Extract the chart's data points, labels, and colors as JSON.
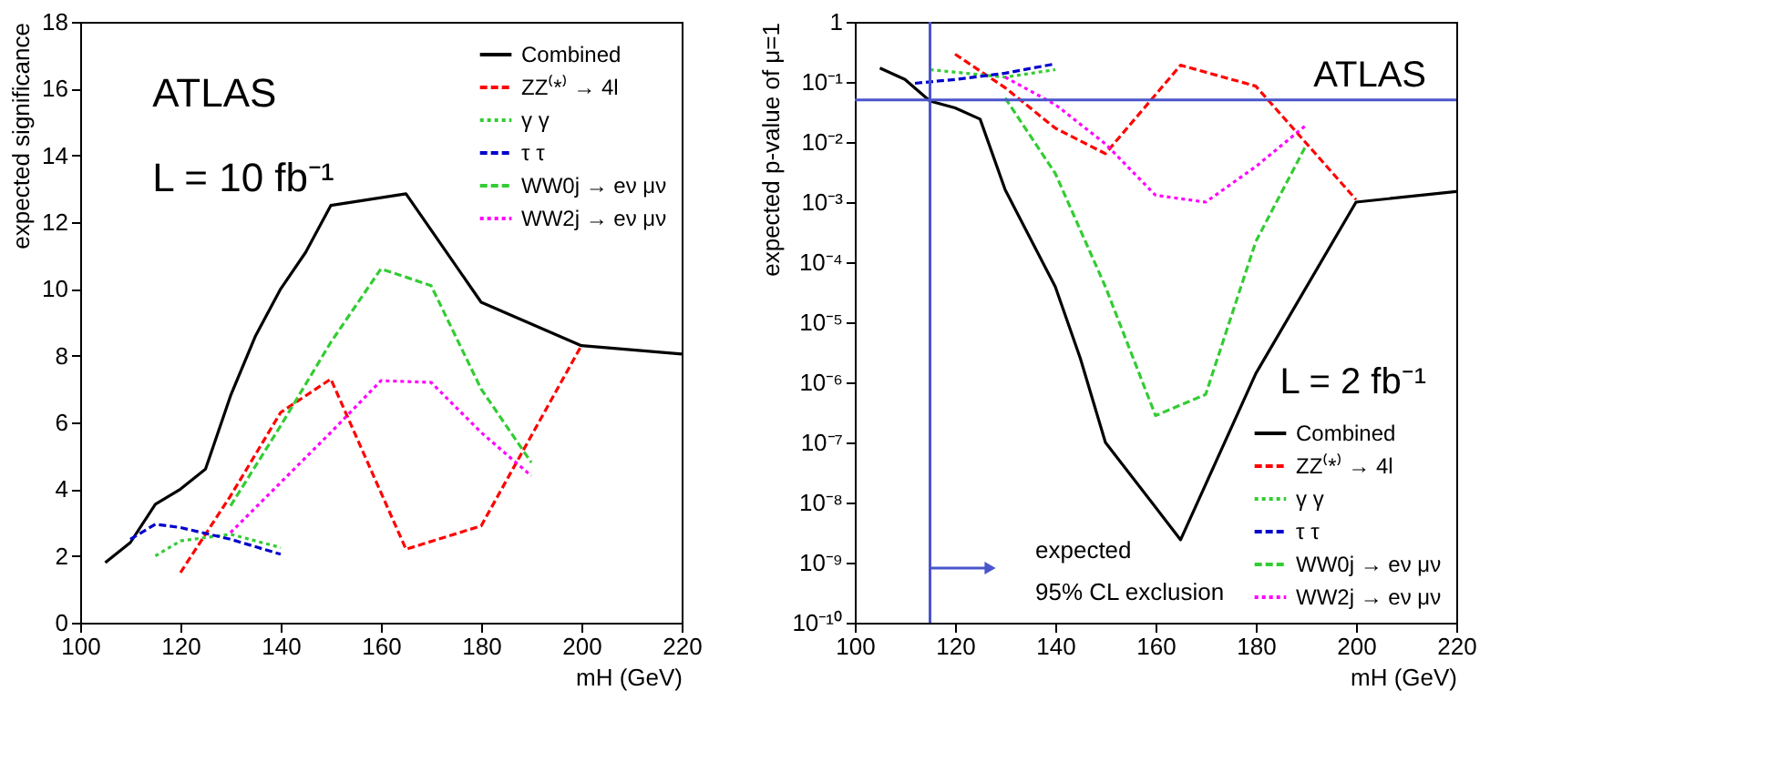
{
  "chart_data": [
    {
      "type": "line",
      "xlabel": "mH (GeV)",
      "ylabel": "expected significance",
      "xlim": [
        100,
        220
      ],
      "xticks": [
        100,
        120,
        140,
        160,
        180,
        200,
        220
      ],
      "ylim": [
        0,
        18
      ],
      "yticks": [
        0,
        2,
        4,
        6,
        8,
        10,
        12,
        14,
        16,
        18
      ],
      "grid": false,
      "legend": "top right",
      "annotations": [
        "ATLAS",
        "L = 10 fb⁻¹"
      ],
      "series": [
        {
          "name": "Combined",
          "color": "#000000",
          "line_style": "solid",
          "x": [
            105,
            110,
            115,
            120,
            125,
            130,
            135,
            140,
            145,
            150,
            165,
            180,
            200,
            220
          ],
          "values": [
            1.8,
            2.4,
            3.55,
            4.0,
            4.6,
            6.8,
            8.6,
            10.0,
            11.1,
            12.5,
            12.85,
            9.6,
            8.3,
            8.05
          ]
        },
        {
          "name": "ZZ⁽*⁾ → 4l",
          "color": "#ff0000",
          "line_style": "dashed",
          "x": [
            120,
            130,
            140,
            150,
            165,
            180,
            200
          ],
          "values": [
            1.5,
            3.8,
            6.3,
            7.3,
            2.2,
            2.9,
            8.3
          ]
        },
        {
          "name": "γ γ",
          "color": "#33cc33",
          "line_style": "dotted",
          "x": [
            115,
            120,
            130,
            140
          ],
          "values": [
            2.0,
            2.45,
            2.65,
            2.25
          ]
        },
        {
          "name": "τ τ",
          "color": "#0000cc",
          "line_style": "dashed",
          "x": [
            110,
            115,
            120,
            130,
            140
          ],
          "values": [
            2.5,
            2.95,
            2.85,
            2.5,
            2.05
          ]
        },
        {
          "name": "WW0j → eν μν",
          "color": "#33cc33",
          "line_style": "dashed",
          "x": [
            130,
            140,
            150,
            160,
            170,
            180,
            190
          ],
          "values": [
            3.5,
            5.9,
            8.4,
            10.6,
            10.1,
            7.0,
            4.8
          ]
        },
        {
          "name": "WW2j → eν μν",
          "color": "#ff00ff",
          "line_style": "dotted",
          "x": [
            130,
            140,
            150,
            160,
            170,
            180,
            190
          ],
          "values": [
            2.7,
            4.2,
            5.7,
            7.25,
            7.2,
            5.7,
            4.4
          ]
        }
      ]
    },
    {
      "type": "line",
      "xlabel": "mH (GeV)",
      "ylabel": "expected p-value of μ=1",
      "log": "y",
      "xlim": [
        100,
        220
      ],
      "xticks": [
        100,
        120,
        140,
        160,
        180,
        200,
        220
      ],
      "ylim": [
        1e-10,
        1
      ],
      "grid": false,
      "legend": "bottom right",
      "yticks": [
        {
          "value": 1e-10,
          "label": "10⁻¹⁰"
        },
        {
          "value": 1e-09,
          "label": "10⁻⁹"
        },
        {
          "value": 1e-08,
          "label": "10⁻⁸"
        },
        {
          "value": 1e-07,
          "label": "10⁻⁷"
        },
        {
          "value": 1e-06,
          "label": "10⁻⁶"
        },
        {
          "value": 1e-05,
          "label": "10⁻⁵"
        },
        {
          "value": 0.0001,
          "label": "10⁻⁴"
        },
        {
          "value": 0.001,
          "label": "10⁻³"
        },
        {
          "value": 0.01,
          "label": "10⁻²"
        },
        {
          "value": 0.1,
          "label": "10⁻¹"
        },
        1
      ],
      "annotations": [
        "ATLAS",
        "L = 2 fb⁻¹",
        "expected",
        "95% CL exclusion"
      ],
      "ref_lines": [
        {
          "axis": "y",
          "value": 0.05,
          "color": "#4a55cc"
        },
        {
          "axis": "x",
          "value": 115,
          "color": "#4a55cc"
        }
      ],
      "series": [
        {
          "name": "Combined",
          "color": "#000000",
          "line_style": "solid",
          "x": [
            105,
            110,
            115,
            120,
            125,
            130,
            140,
            145,
            150,
            165,
            180,
            200,
            220
          ],
          "values": [
            0.17,
            0.11,
            0.048,
            0.037,
            0.024,
            0.0016,
            3.9e-05,
            2.5e-06,
            1e-07,
            2.4e-09,
            1.4e-06,
            0.001,
            0.0015
          ]
        },
        {
          "name": "ZZ⁽*⁾ → 4l",
          "color": "#ff0000",
          "line_style": "dashed",
          "x": [
            120,
            130,
            140,
            150,
            165,
            180,
            200
          ],
          "values": [
            0.29,
            0.08,
            0.017,
            0.0064,
            0.19,
            0.085,
            0.0011
          ]
        },
        {
          "name": "γ γ",
          "color": "#33cc33",
          "line_style": "dotted",
          "x": [
            115,
            130,
            140
          ],
          "values": [
            0.16,
            0.12,
            0.16
          ]
        },
        {
          "name": "τ τ",
          "color": "#0000cc",
          "line_style": "dashed",
          "x": [
            112,
            120,
            130,
            140
          ],
          "values": [
            0.095,
            0.11,
            0.14,
            0.2
          ]
        },
        {
          "name": "WW0j → eν μν",
          "color": "#33cc33",
          "line_style": "dashed",
          "x": [
            130,
            140,
            150,
            160,
            170,
            180,
            190
          ],
          "values": [
            0.054,
            0.003,
            3.9e-05,
            2.8e-07,
            6.3e-07,
            0.00022,
            0.0087
          ]
        },
        {
          "name": "WW2j → eν μν",
          "color": "#ff00ff",
          "line_style": "dotted",
          "x": [
            130,
            140,
            150,
            160,
            170,
            180,
            190
          ],
          "values": [
            0.12,
            0.042,
            0.0093,
            0.0013,
            0.001,
            0.0039,
            0.019
          ]
        }
      ]
    }
  ]
}
